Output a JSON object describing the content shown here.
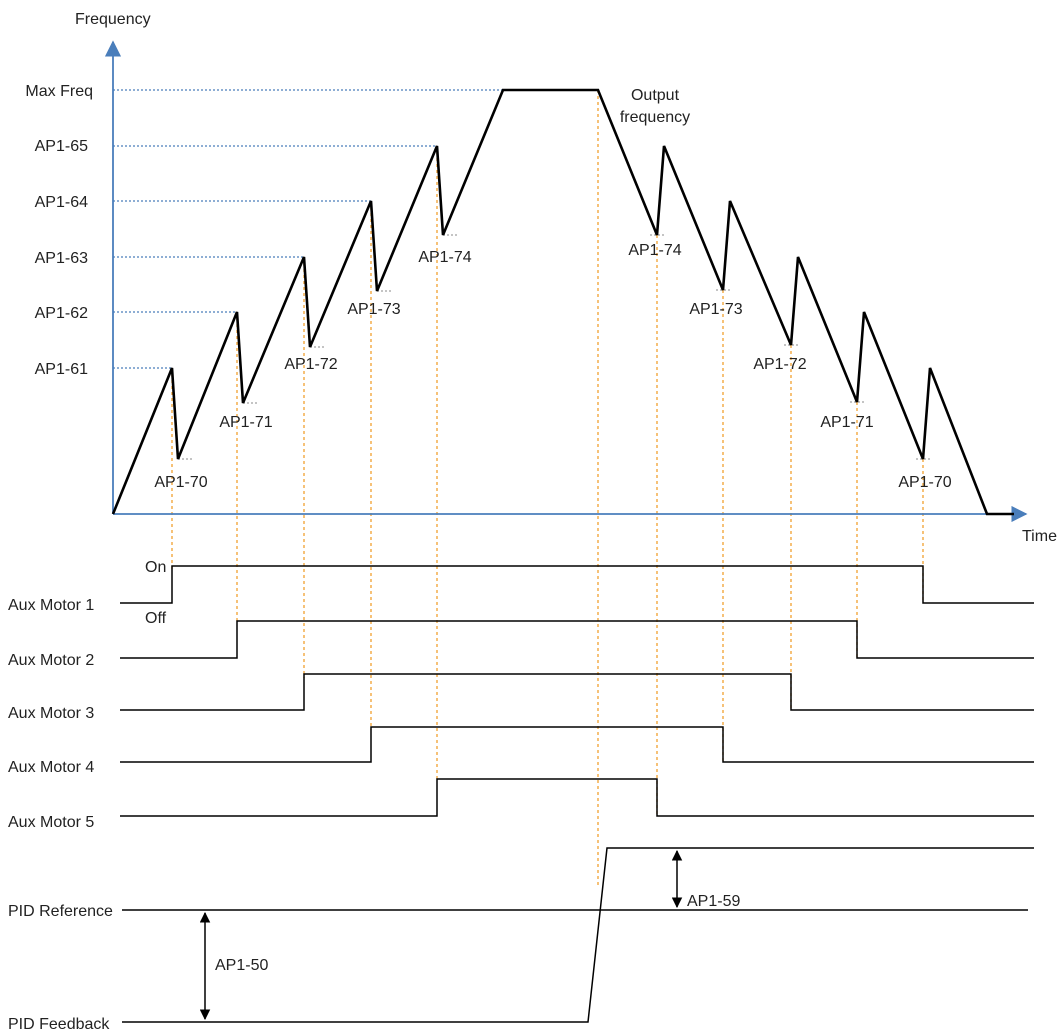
{
  "axes": {
    "y_title": "Frequency",
    "x_title": "Time"
  },
  "freq_levels": {
    "max_freq": "Max Freq",
    "ap1_65": "AP1-65",
    "ap1_64": "AP1-64",
    "ap1_63": "AP1-63",
    "ap1_62": "AP1-62",
    "ap1_61": "AP1-61"
  },
  "output_label": [
    "Output",
    "frequency"
  ],
  "dips_up": [
    "AP1-70",
    "AP1-71",
    "AP1-72",
    "AP1-73",
    "AP1-74"
  ],
  "dips_down": [
    "AP1-74",
    "AP1-73",
    "AP1-72",
    "AP1-71",
    "AP1-70"
  ],
  "state_labels": {
    "on": "On",
    "off": "Off"
  },
  "motors": [
    "Aux Motor 1",
    "Aux Motor 2",
    "Aux Motor 3",
    "Aux Motor 4",
    "Aux Motor 5"
  ],
  "pid": {
    "reference": "PID Reference",
    "feedback": "PID Feedback",
    "band_ref": "AP1-50",
    "band_up": "AP1-59"
  },
  "colors": {
    "axis": "#4a7ebb",
    "guide_orange": "#f0a030",
    "trace": "#000000"
  }
}
